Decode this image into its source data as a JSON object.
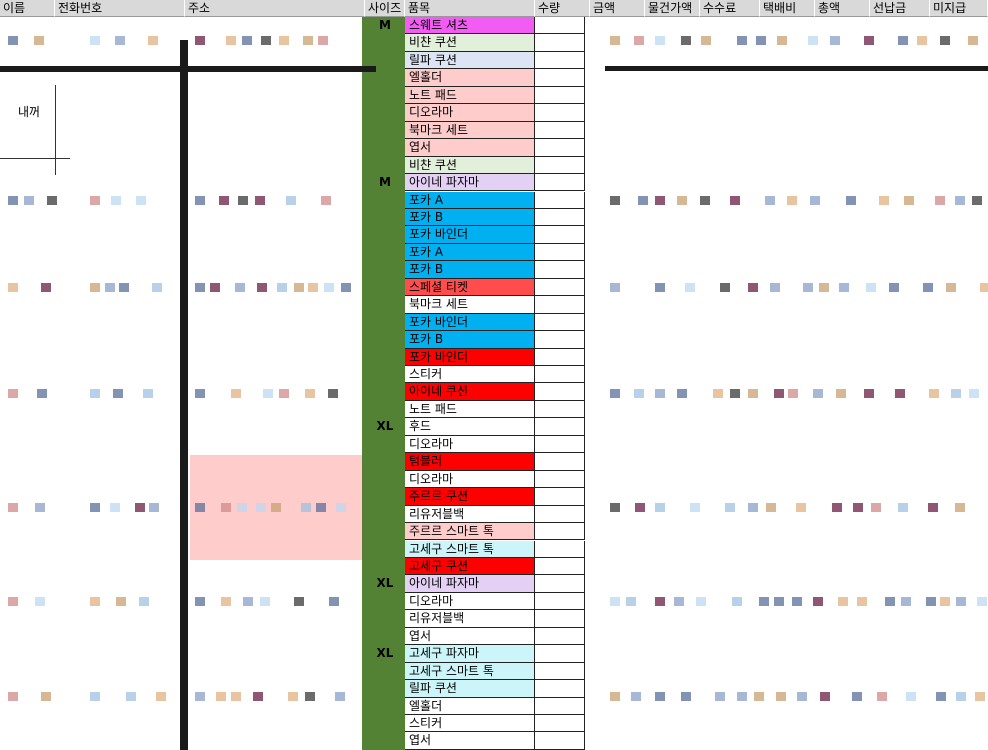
{
  "header": {
    "columns": [
      "이름",
      "전화번호",
      "주소",
      "사이즈",
      "품목",
      "수량",
      "금액",
      "물건가액",
      "수수료",
      "택배비",
      "총액",
      "선납금",
      "미지급"
    ]
  },
  "note": "내꺼",
  "rows": [
    {
      "item": "스웨트 셔츠",
      "size": "M",
      "color": "#f25cf2"
    },
    {
      "item": "비챤 쿠션",
      "color": "#e2efda"
    },
    {
      "item": "릴파 쿠션",
      "color": "#dde4f4"
    },
    {
      "item": "엘홀더",
      "color": "#ffcccc"
    },
    {
      "item": "노트 패드",
      "color": "#ffcccc"
    },
    {
      "item": "디오라마",
      "color": "#ffcccc"
    },
    {
      "item": "북마크 세트",
      "color": "#ffcccc"
    },
    {
      "item": "엽서",
      "color": "#ffcccc"
    },
    {
      "item": "비챤 쿠션",
      "color": "#e2efda"
    },
    {
      "item": "아이네 파자마",
      "size": "M",
      "color": "#e4d0f5"
    },
    {
      "item": "포카 A",
      "color": "#00b0f0"
    },
    {
      "item": "포카 B",
      "color": "#00b0f0"
    },
    {
      "item": "포카 바인더",
      "color": "#00b0f0"
    },
    {
      "item": "포카 A",
      "color": "#00b0f0"
    },
    {
      "item": "포카 B",
      "color": "#00b0f0"
    },
    {
      "item": "스페셜 티켓",
      "color": "#ff4d4d"
    },
    {
      "item": "북마크 세트",
      "color": "#ffffff"
    },
    {
      "item": "포카 바인더",
      "color": "#00b0f0"
    },
    {
      "item": "포카 B",
      "color": "#00b0f0"
    },
    {
      "item": "포카 바인더",
      "color": "#ff0000"
    },
    {
      "item": "스티커",
      "color": "#ffffff"
    },
    {
      "item": "아이네 쿠션",
      "color": "#ff0000"
    },
    {
      "item": "노트 패드",
      "color": "#ffffff"
    },
    {
      "item": "후드",
      "size": "XL",
      "color": "#ffffff"
    },
    {
      "item": "디오라마",
      "color": "#ffffff"
    },
    {
      "item": "텀블러",
      "color": "#ff0000"
    },
    {
      "item": "디오라마",
      "color": "#ffffff"
    },
    {
      "item": "주르르 쿠션",
      "color": "#ff0000"
    },
    {
      "item": "리유저블백",
      "color": "#ffffff"
    },
    {
      "item": "주르르 스마트 톡",
      "color": "#ffcccc"
    },
    {
      "item": "고세구 스마트 톡",
      "color": "#ccf5fa"
    },
    {
      "item": "고세구 쿠션",
      "color": "#ff0000"
    },
    {
      "item": "아이네 파자마",
      "size": "XL",
      "color": "#e4d0f5"
    },
    {
      "item": "디오라마",
      "color": "#ffffff"
    },
    {
      "item": "리유저블백",
      "color": "#ffffff"
    },
    {
      "item": "엽서",
      "color": "#ffffff"
    },
    {
      "item": "고세구 파자마",
      "size": "XL",
      "color": "#ccf5fa"
    },
    {
      "item": "고세구 스마트 톡",
      "color": "#ccf5fa"
    },
    {
      "item": "릴파 쿠션",
      "color": "#ccf5fa"
    },
    {
      "item": "엘홀더",
      "color": "#ffffff"
    },
    {
      "item": "스티커",
      "color": "#ffffff"
    },
    {
      "item": "엽서",
      "color": "#ffffff"
    }
  ]
}
